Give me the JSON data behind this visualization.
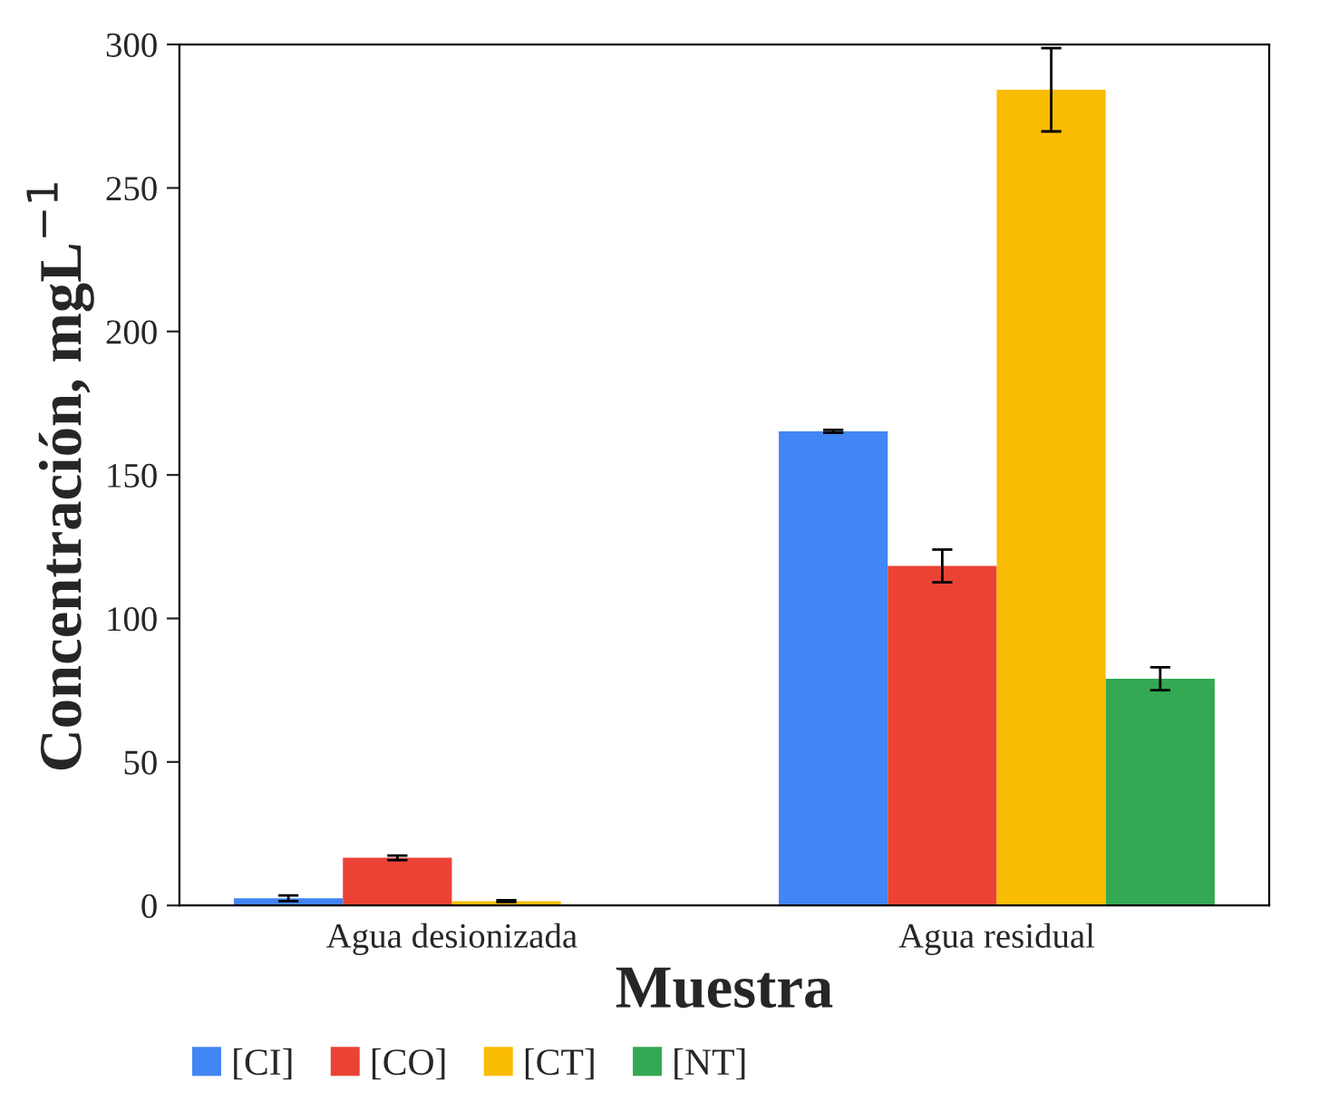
{
  "chart_data": {
    "type": "bar",
    "xlabel": "Muestra",
    "ylabel": "Concentración, mgL$^{−1}$",
    "categories": [
      "Agua desionizada",
      "Agua residual"
    ],
    "series": [
      {
        "name": "[CI]",
        "color": "#4285f4",
        "values": [
          2.5,
          165.2
        ],
        "errors": [
          1,
          0.5
        ]
      },
      {
        "name": "[CO]",
        "color": "#ea4335",
        "values": [
          16.6,
          118.3
        ],
        "errors": [
          0.8,
          5.7
        ]
      },
      {
        "name": "[CT]",
        "color": "#fbbc04",
        "values": [
          1.5,
          284.2
        ],
        "errors": [
          0.3,
          14.5
        ]
      },
      {
        "name": "[NT]",
        "color": "#34a853",
        "values": [
          null,
          79
        ],
        "errors": [
          null,
          4
        ]
      }
    ],
    "ylim": [
      0,
      300
    ],
    "yticks": [
      0,
      50,
      100,
      150,
      200,
      250,
      300
    ],
    "grid": false,
    "legend": "bottom left"
  }
}
